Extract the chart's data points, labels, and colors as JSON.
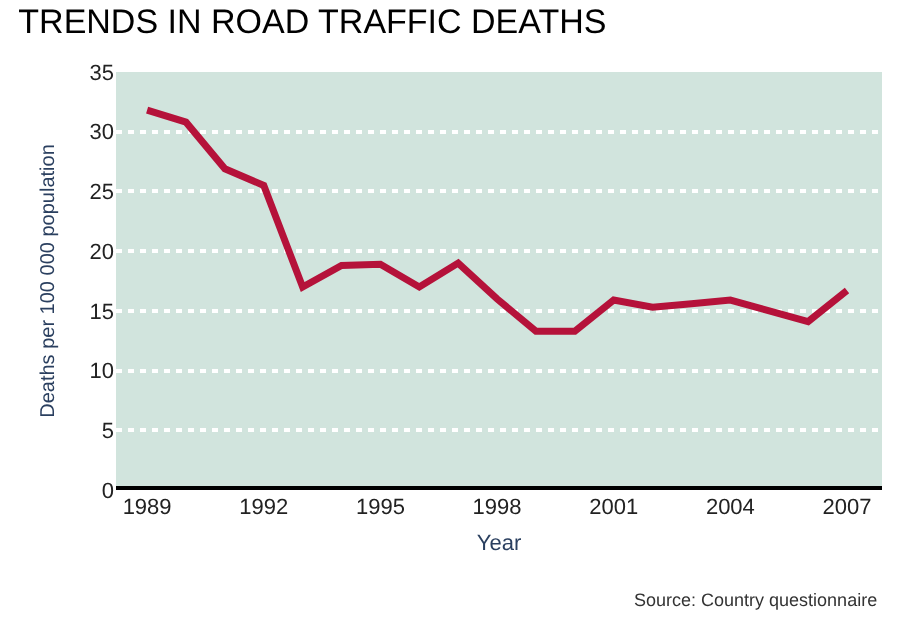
{
  "chart_data": {
    "type": "line",
    "title": "TRENDS IN ROAD TRAFFIC DEATHS",
    "xlabel": "Year",
    "ylabel": "Deaths per 100 000 population",
    "x": [
      1989,
      1990,
      1991,
      1992,
      1993,
      1994,
      1995,
      1996,
      1997,
      1998,
      1999,
      2000,
      2001,
      2002,
      2003,
      2004,
      2005,
      2006,
      2007
    ],
    "series": [
      {
        "color": "#b5123a",
        "values": [
          31.8,
          30.8,
          26.9,
          25.5,
          17.0,
          18.8,
          18.9,
          17.0,
          19.0,
          16.0,
          13.3,
          13.3,
          15.9,
          15.3,
          15.6,
          15.9,
          15.0,
          14.1,
          16.7
        ]
      }
    ],
    "xlim": [
      1988.2,
      2007.9
    ],
    "xticks": [
      1989,
      1992,
      1995,
      1998,
      2001,
      2004,
      2007
    ],
    "ylim": [
      0,
      35
    ],
    "yticks": [
      0,
      5,
      10,
      15,
      20,
      25,
      30,
      35
    ],
    "grid": "y",
    "marker": "none",
    "line_style": "solid",
    "annotations": [
      "Source: Country questionnaire"
    ]
  }
}
